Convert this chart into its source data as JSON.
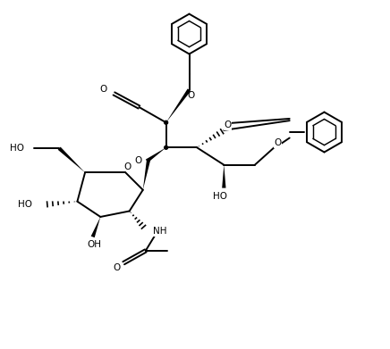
{
  "bg_color": "#ffffff",
  "line_color": "#000000",
  "lw": 1.4,
  "figsize": [
    4.36,
    3.91
  ],
  "dpi": 100,
  "xlim": [
    0,
    10
  ],
  "ylim": [
    0,
    9
  ]
}
